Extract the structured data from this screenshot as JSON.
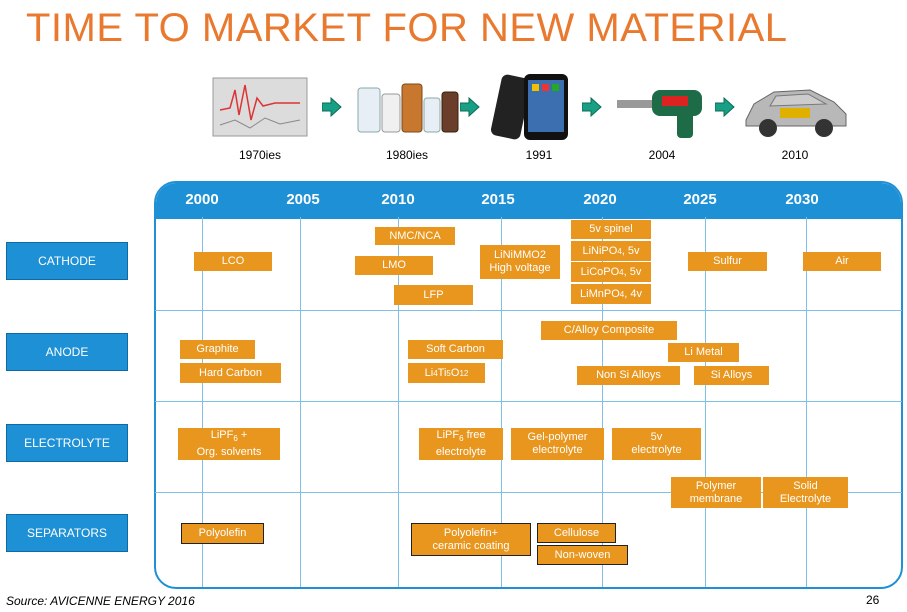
{
  "title": "TIME TO MARKET FOR NEW MATERIAL",
  "eras": [
    {
      "label": "1970ies",
      "icon": "spectrum-plot-icon"
    },
    {
      "label": "1980ies",
      "icon": "chemical-bottles-icon"
    },
    {
      "label": "1991",
      "icon": "smartphone-icon"
    },
    {
      "label": "2004",
      "icon": "power-drill-icon"
    },
    {
      "label": "2010",
      "icon": "car-icon"
    }
  ],
  "timeline": {
    "years": [
      "2000",
      "2005",
      "2010",
      "2015",
      "2020",
      "2025",
      "2030"
    ]
  },
  "categories": [
    "CATHODE",
    "ANODE",
    "ELECTROLYTE",
    "SEPARATORS"
  ],
  "materials": {
    "cathode": {
      "lco": "LCO",
      "nmc": "NMC/NCA",
      "lmo": "LMO",
      "lfp": "LFP",
      "linimmo2_a": "LiNiMMO2",
      "linimmo2_b": "High voltage",
      "spinel": "5v spinel",
      "linipo4": "LiNiPO",
      "linipo4_sub": "4",
      "linipo4_suffix": ", 5v",
      "licopo4": "LiCoPO",
      "licopo4_sub": "4",
      "licopo4_suffix": ", 5v",
      "limnpo4": "LiMnPO",
      "limnpo4_sub": "4",
      "limnpo4_suffix": ", 4v",
      "sulfur": "Sulfur",
      "air": "Air"
    },
    "anode": {
      "graphite": "Graphite",
      "hard_carbon": "Hard Carbon",
      "soft_carbon": "Soft Carbon",
      "lto_a": "Li",
      "lto_b": "4",
      "lto_c": "Ti",
      "lto_d": "5",
      "lto_e": "O",
      "lto_f": "12",
      "c_alloy": "C/Alloy Composite",
      "li_metal": "Li Metal",
      "non_si": "Non Si Alloys",
      "si_alloys": "Si Alloys"
    },
    "electrolyte": {
      "lipf6_a": "LiPF",
      "lipf6_sub": "6",
      "lipf6_b": " +",
      "lipf6_c": "Org. solvents",
      "lipf6free_a": "LiPF",
      "lipf6free_sub": "6",
      "lipf6free_b": " free",
      "lipf6free_c": "electrolyte",
      "gel": "Gel-polymer\nelectrolyte",
      "fivev": "5v\nelectrolyte",
      "polymer": "Polymer\nmembrane",
      "solid": "Solid\nElectrolyte"
    },
    "separators": {
      "polyolefin": "Polyolefin",
      "poly_ceramic": "Polyolefin+\nceramic coating",
      "cellulose": "Cellulose",
      "nonwoven": "Non-woven"
    }
  },
  "source": "Source: AVICENNE ENERGY 2016",
  "page_number": "26",
  "colors": {
    "accent": "#E8792F",
    "box": "#E8961E",
    "blue": "#1E90D6",
    "arrow": "#17A085"
  }
}
